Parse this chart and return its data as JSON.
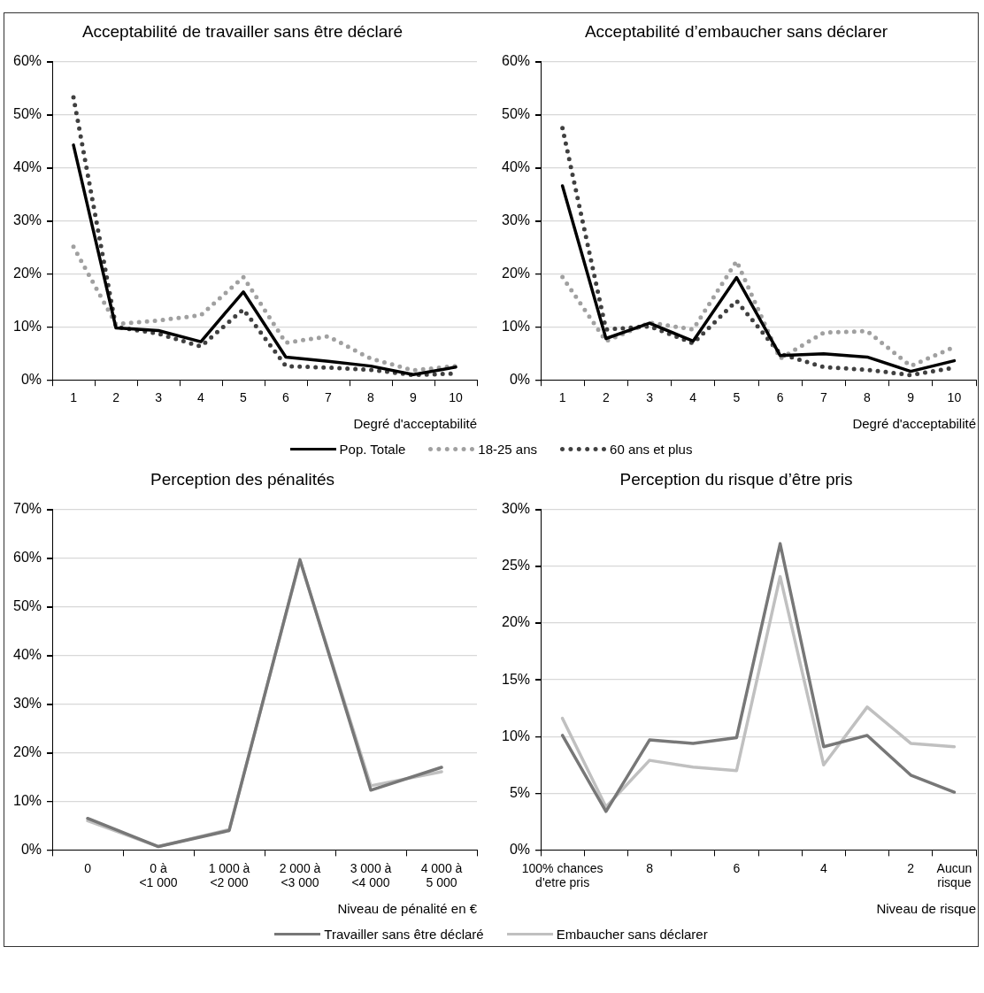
{
  "chart_data": [
    {
      "type": "line",
      "title": "Acceptabilité de travailler sans être déclaré",
      "xlabel": "Degré d'acceptabilité",
      "categories": [
        "1",
        "2",
        "3",
        "4",
        "5",
        "6",
        "7",
        "8",
        "9",
        "10"
      ],
      "series": [
        {
          "name": "Pop. Totale",
          "color": "#000000",
          "line_style": "solid",
          "values": [
            44.3,
            9.8,
            9.3,
            7.2,
            16.6,
            4.3,
            3.5,
            2.6,
            1.0,
            2.4
          ]
        },
        {
          "name": "18-25 ans",
          "color": "#a0a0a0",
          "line_style": "dotted",
          "values": [
            25.1,
            10.5,
            11.2,
            12.2,
            19.4,
            7.0,
            8.2,
            4.0,
            1.8,
            2.6
          ]
        },
        {
          "name": "60 ans et plus",
          "color": "#404040",
          "line_style": "dotted",
          "values": [
            53.3,
            10.0,
            8.7,
            6.3,
            13.3,
            2.6,
            2.3,
            1.9,
            0.9,
            1.2
          ]
        }
      ],
      "ylim": [
        0,
        60
      ],
      "yticks": [
        {
          "value": 0,
          "label": "0%"
        },
        {
          "value": 10,
          "label": "10%"
        },
        {
          "value": 20,
          "label": "20%"
        },
        {
          "value": 30,
          "label": "30%"
        },
        {
          "value": 40,
          "label": "40%"
        },
        {
          "value": 50,
          "label": "50%"
        },
        {
          "value": 60,
          "label": "60%"
        }
      ],
      "grid": "y",
      "legend": "bottom",
      "marker": "none"
    },
    {
      "type": "line",
      "title": "Acceptabilité d’embaucher sans déclarer",
      "xlabel": "Degré d'acceptabilité",
      "categories": [
        "1",
        "2",
        "3",
        "4",
        "5",
        "6",
        "7",
        "8",
        "9",
        "10"
      ],
      "series": [
        {
          "name": "Pop. Totale",
          "color": "#000000",
          "line_style": "solid",
          "values": [
            36.6,
            7.8,
            10.7,
            7.3,
            19.3,
            4.6,
            4.9,
            4.3,
            1.6,
            3.6
          ]
        },
        {
          "name": "18-25 ans",
          "color": "#a0a0a0",
          "line_style": "dotted",
          "values": [
            19.4,
            7.3,
            10.8,
            9.5,
            22.4,
            4.0,
            8.9,
            9.2,
            2.6,
            6.2
          ]
        },
        {
          "name": "60 ans et plus",
          "color": "#404040",
          "line_style": "dotted",
          "values": [
            47.5,
            9.5,
            10.1,
            6.9,
            14.9,
            4.9,
            2.4,
            1.9,
            0.9,
            2.3
          ]
        }
      ],
      "ylim": [
        0,
        60
      ],
      "yticks": [
        {
          "value": 0,
          "label": "0%"
        },
        {
          "value": 10,
          "label": "10%"
        },
        {
          "value": 20,
          "label": "20%"
        },
        {
          "value": 30,
          "label": "30%"
        },
        {
          "value": 40,
          "label": "40%"
        },
        {
          "value": 50,
          "label": "50%"
        },
        {
          "value": 60,
          "label": "60%"
        }
      ],
      "grid": "y",
      "marker": "none"
    },
    {
      "type": "line",
      "title": "Perception des pénalités",
      "xlabel": "Niveau de pénalité en €",
      "categories": [
        "0",
        "0 à\n<1 000",
        "1 000 à\n<2 000",
        "2 000 à\n<3 000",
        "3 000 à\n<4 000",
        "4 000 à\n5 000"
      ],
      "series": [
        {
          "name": "Travailler sans être déclaré",
          "color": "#777777",
          "line_style": "solid",
          "values": [
            6.5,
            0.7,
            4.0,
            59.7,
            12.3,
            17.0
          ]
        },
        {
          "name": "Embaucher sans déclarer",
          "color": "#c0c0c0",
          "line_style": "solid",
          "values": [
            6.0,
            0.7,
            4.2,
            59.5,
            13.2,
            16.1
          ]
        }
      ],
      "ylim": [
        0,
        70
      ],
      "yticks": [
        {
          "value": 0,
          "label": "0%"
        },
        {
          "value": 10,
          "label": "10%"
        },
        {
          "value": 20,
          "label": "20%"
        },
        {
          "value": 30,
          "label": "30%"
        },
        {
          "value": 40,
          "label": "40%"
        },
        {
          "value": 50,
          "label": "50%"
        },
        {
          "value": 60,
          "label": "60%"
        },
        {
          "value": 70,
          "label": "70%"
        }
      ],
      "grid": "y",
      "legend": "bottom",
      "marker": "none"
    },
    {
      "type": "line",
      "title": "Perception du risque d’être pris",
      "xlabel": "Niveau de risque",
      "categories": [
        "100% chances\nd'etre pris",
        null,
        "8",
        null,
        "6",
        null,
        "4",
        null,
        "2",
        "Aucun\nrisque"
      ],
      "series": [
        {
          "name": "Travailler sans être déclaré",
          "color": "#777777",
          "line_style": "solid",
          "values": [
            10.1,
            3.4,
            9.7,
            9.4,
            9.9,
            27.0,
            9.1,
            10.1,
            6.6,
            5.1
          ]
        },
        {
          "name": "Embaucher sans déclarer",
          "color": "#c0c0c0",
          "line_style": "solid",
          "values": [
            11.6,
            3.8,
            7.9,
            7.3,
            7.0,
            24.1,
            7.5,
            12.6,
            9.4,
            9.1
          ]
        }
      ],
      "ylim": [
        0,
        30
      ],
      "yticks": [
        {
          "value": 0,
          "label": "0%"
        },
        {
          "value": 5,
          "label": "5%"
        },
        {
          "value": 10,
          "label": "10%"
        },
        {
          "value": 15,
          "label": "15%"
        },
        {
          "value": 20,
          "label": "20%"
        },
        {
          "value": 25,
          "label": "25%"
        },
        {
          "value": 30,
          "label": "30%"
        }
      ],
      "grid": "y",
      "marker": "none"
    }
  ]
}
